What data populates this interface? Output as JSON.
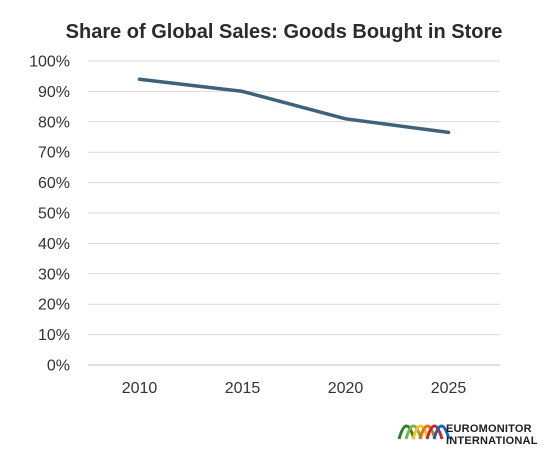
{
  "chart_data": {
    "type": "line",
    "title": "Share of Global Sales: Goods Bought in Store",
    "xlabel": "",
    "ylabel": "",
    "categories": [
      "2010",
      "2015",
      "2020",
      "2025"
    ],
    "series": [
      {
        "values": [
          94,
          90,
          81,
          76.5
        ]
      }
    ],
    "ylim": [
      0,
      100
    ],
    "yticks": [
      "0%",
      "10%",
      "20%",
      "30%",
      "40%",
      "50%",
      "60%",
      "70%",
      "80%",
      "90%",
      "100%"
    ],
    "grid": true,
    "legend": "none",
    "colors": {
      "line": "#3d6378",
      "grid": "#d9d9d9",
      "axis": "#bfbfbf"
    }
  },
  "branding": {
    "line1": "EUROMONITOR",
    "line2": "INTERNATIONAL",
    "logo_icon": "rainbow-arches-icon",
    "logo_colors": [
      "#2e7d32",
      "#7cb342",
      "#fbc02d",
      "#ef6c00",
      "#c62828",
      "#1565c0"
    ]
  }
}
